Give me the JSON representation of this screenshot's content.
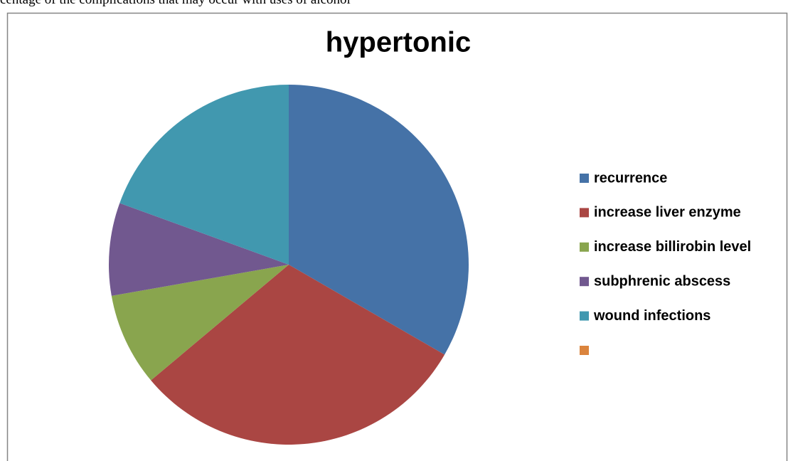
{
  "caption": "centage of the complications that may occur with uses of alcohol",
  "chart_data": {
    "type": "pie",
    "title": "hypertonic",
    "categories": [
      "recurrence",
      "increase liver enzyme",
      "increase billirobin level",
      "subphrenic abscess",
      "wound infections",
      null
    ],
    "values": [
      12,
      11,
      3,
      3,
      7,
      0
    ],
    "colors": [
      "#4572a7",
      "#aa4643",
      "#89a54e",
      "#71588f",
      "#4198af",
      "#db843d"
    ],
    "legend": "right"
  }
}
